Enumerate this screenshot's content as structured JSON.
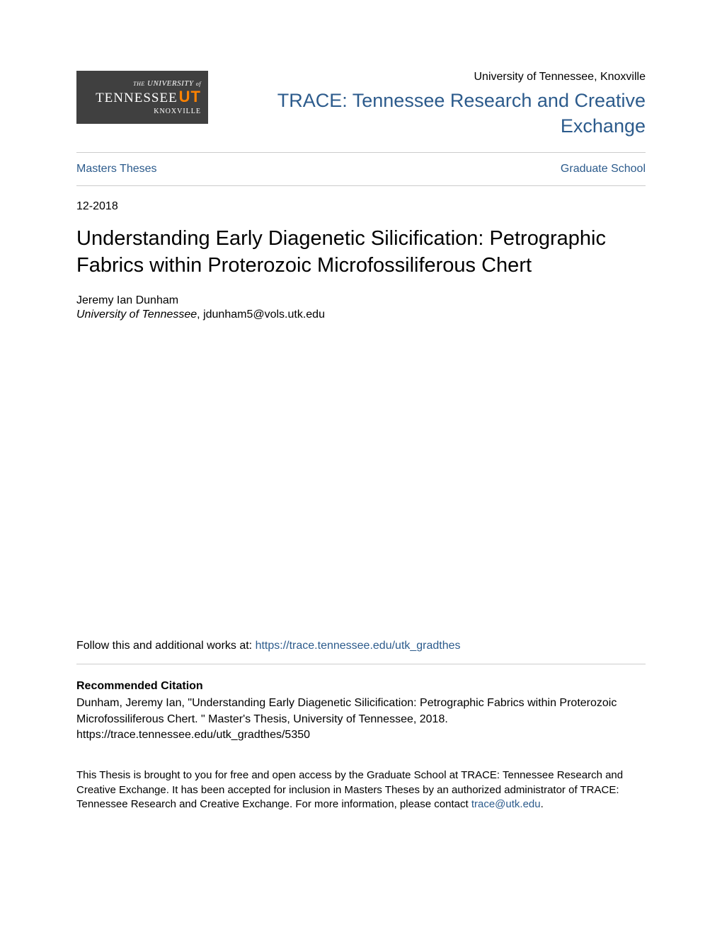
{
  "header": {
    "logo": {
      "line1_prefix": "THE",
      "line1_main": "UNIVERSITY",
      "line1_suffix": "of",
      "line2": "TENNESSEE",
      "line3": "KNOXVILLE"
    },
    "institution": "University of Tennessee, Knoxville",
    "repo_name": "TRACE: Tennessee Research and Creative Exchange"
  },
  "nav": {
    "left": "Masters Theses",
    "right": "Graduate School"
  },
  "date": "12-2018",
  "title": "Understanding Early Diagenetic Silicification: Petrographic Fabrics within Proterozoic Microfossiliferous Chert",
  "author": {
    "name": "Jeremy Ian Dunham",
    "affiliation": "University of Tennessee",
    "email": "jdunham5@vols.utk.edu"
  },
  "follow": {
    "prefix": "Follow this and additional works at: ",
    "url": "https://trace.tennessee.edu/utk_gradthes"
  },
  "citation": {
    "heading": "Recommended Citation",
    "text": "Dunham, Jeremy Ian, \"Understanding Early Diagenetic Silicification: Petrographic Fabrics within Proterozoic Microfossiliferous Chert. \" Master's Thesis, University of Tennessee, 2018. https://trace.tennessee.edu/utk_gradthes/5350"
  },
  "footer": {
    "text_before": "This Thesis is brought to you for free and open access by the Graduate School at TRACE: Tennessee Research and Creative Exchange. It has been accepted for inclusion in Masters Theses by an authorized administrator of TRACE: Tennessee Research and Creative Exchange. For more information, please contact ",
    "contact": "trace@utk.edu",
    "text_after": "."
  },
  "colors": {
    "link": "#2c5b8c",
    "text": "#000000",
    "divider": "#cccccc",
    "logo_bg": "#404040",
    "logo_accent": "#ff8200",
    "background": "#ffffff"
  }
}
